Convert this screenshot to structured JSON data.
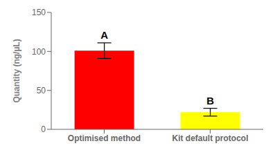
{
  "chart_data": {
    "type": "bar",
    "categories": [
      "Optimised method",
      "Kit default protocol"
    ],
    "values": [
      101,
      22
    ],
    "errors": [
      10,
      5
    ],
    "annotations": [
      "A",
      "B"
    ],
    "ylabel": "Quantity (ng/µL)",
    "ylim": [
      0,
      150
    ],
    "yticks": [
      0,
      50,
      100,
      150
    ],
    "colors": [
      "#ff0000",
      "#ffff00"
    ],
    "grid": false
  }
}
